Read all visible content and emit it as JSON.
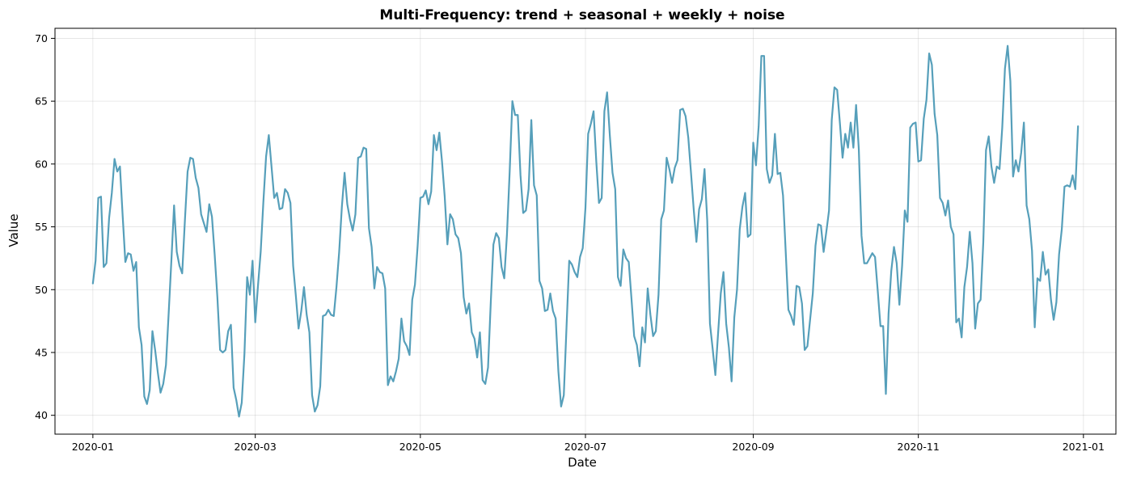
{
  "chart_data": {
    "type": "line",
    "title": "Multi-Frequency: trend + seasonal + weekly + noise",
    "xlabel": "Date",
    "ylabel": "Value",
    "x_start": "2020-01-01",
    "x_end": "2020-12-30",
    "xlim": [
      "2019-12-18",
      "2021-01-13"
    ],
    "ylim": [
      38.5,
      70.8
    ],
    "x_ticks": [
      "2020-01",
      "2020-03",
      "2020-05",
      "2020-07",
      "2020-09",
      "2020-11",
      "2021-01"
    ],
    "y_ticks": [
      40,
      45,
      50,
      55,
      60,
      65,
      70
    ],
    "grid": true,
    "colors": {
      "line": "#569fba"
    },
    "series": [
      {
        "values": [
          50.5,
          52.3,
          57.3,
          57.4,
          51.8,
          52.1,
          55.7,
          57.7,
          60.4,
          59.4,
          59.8,
          55.9,
          52.2,
          52.9,
          52.8,
          51.5,
          52.2,
          47.0,
          45.6,
          41.5,
          40.9,
          42.0,
          46.7,
          45.2,
          43.4,
          41.8,
          42.5,
          44.0,
          48.1,
          52.3,
          56.7,
          53.0,
          51.9,
          51.3,
          55.5,
          59.4,
          60.5,
          60.4,
          58.9,
          58.1,
          56.0,
          55.3,
          54.6,
          56.8,
          55.8,
          52.8,
          49.4,
          45.2,
          45.0,
          45.2,
          46.7,
          47.2,
          42.2,
          41.2,
          39.9,
          41.0,
          44.9,
          51.0,
          49.6,
          52.3,
          47.4,
          50.3,
          53.0,
          57.0,
          60.6,
          62.3,
          59.8,
          57.3,
          57.7,
          56.4,
          56.5,
          58.0,
          57.7,
          56.9,
          51.9,
          49.5,
          46.9,
          48.3,
          50.2,
          48.0,
          46.6,
          41.6,
          40.3,
          40.8,
          42.3,
          47.9,
          48.0,
          48.4,
          48.0,
          47.9,
          50.2,
          53.0,
          56.6,
          59.3,
          56.8,
          55.6,
          54.7,
          56.0,
          60.5,
          60.6,
          61.3,
          61.2,
          54.9,
          53.4,
          50.1,
          51.8,
          51.4,
          51.3,
          50.1,
          42.4,
          43.1,
          42.7,
          43.5,
          44.5,
          47.7,
          45.9,
          45.5,
          44.8,
          49.2,
          50.4,
          53.5,
          57.3,
          57.4,
          57.9,
          56.8,
          57.8,
          62.3,
          61.1,
          62.5,
          60.2,
          57.4,
          53.6,
          56.0,
          55.6,
          54.4,
          54.1,
          52.9,
          49.4,
          48.1,
          48.9,
          46.6,
          46.1,
          44.6,
          46.6,
          42.8,
          42.5,
          43.8,
          48.9,
          53.6,
          54.5,
          54.1,
          51.8,
          50.9,
          54.4,
          59.4,
          65.0,
          63.9,
          63.9,
          59.1,
          56.1,
          56.3,
          58.0,
          63.5,
          58.3,
          57.5,
          50.7,
          50.1,
          48.3,
          48.4,
          49.7,
          48.3,
          47.7,
          43.5,
          40.7,
          41.6,
          47.0,
          52.3,
          52.0,
          51.4,
          51.0,
          52.6,
          53.3,
          56.5,
          62.4,
          63.2,
          64.2,
          60.2,
          56.9,
          57.3,
          64.2,
          65.7,
          62.3,
          59.3,
          58.0,
          51.0,
          50.3,
          53.2,
          52.5,
          52.2,
          49.3,
          46.3,
          45.6,
          43.9,
          47.0,
          45.8,
          50.1,
          48.0,
          46.3,
          46.7,
          49.6,
          55.6,
          56.3,
          60.5,
          59.6,
          58.5,
          59.7,
          60.3,
          64.3,
          64.4,
          63.8,
          62.1,
          59.3,
          56.4,
          53.8,
          56.4,
          57.2,
          59.6,
          55.5,
          47.3,
          45.3,
          43.2,
          46.5,
          49.7,
          51.4,
          47.3,
          45.4,
          42.7,
          47.8,
          50.0,
          54.8,
          56.6,
          57.7,
          54.2,
          54.4,
          61.7,
          59.9,
          63.0,
          68.6,
          68.6,
          59.6,
          58.5,
          59.1,
          62.4,
          59.2,
          59.3,
          57.5,
          53.0,
          48.4,
          47.9,
          47.2,
          50.3,
          50.2,
          48.9,
          45.2,
          45.5,
          47.6,
          49.7,
          53.5,
          55.2,
          55.1,
          53.0,
          54.6,
          56.3,
          63.5,
          66.1,
          65.9,
          63.3,
          60.5,
          62.4,
          61.3,
          63.3,
          61.3,
          64.7,
          61.2,
          54.3,
          52.1,
          52.1,
          52.5,
          52.9,
          52.6,
          49.9,
          47.1,
          47.1,
          41.7,
          48.1,
          51.5,
          53.4,
          52.1,
          48.8,
          51.9,
          56.3,
          55.4,
          62.9,
          63.2,
          63.3,
          60.2,
          60.3,
          63.6,
          65.1,
          68.8,
          67.9,
          64.0,
          62.3,
          57.3,
          56.9,
          55.9,
          57.1,
          55.0,
          54.4,
          47.4,
          47.7,
          46.2,
          50.2,
          51.8,
          54.6,
          52.1,
          46.9,
          48.9,
          49.2,
          53.8,
          61.1,
          62.2,
          59.8,
          58.5,
          59.8,
          59.6,
          62.9,
          67.6,
          69.4,
          66.6,
          59.0,
          60.3,
          59.4,
          60.9,
          63.3,
          56.7,
          55.6,
          53.1,
          47.0,
          50.9,
          50.7,
          53.0,
          51.2,
          51.6,
          49.2,
          47.6,
          49.0,
          52.8,
          54.8,
          58.2,
          58.3,
          58.2,
          59.1,
          58.0,
          63.0
        ]
      }
    ]
  }
}
